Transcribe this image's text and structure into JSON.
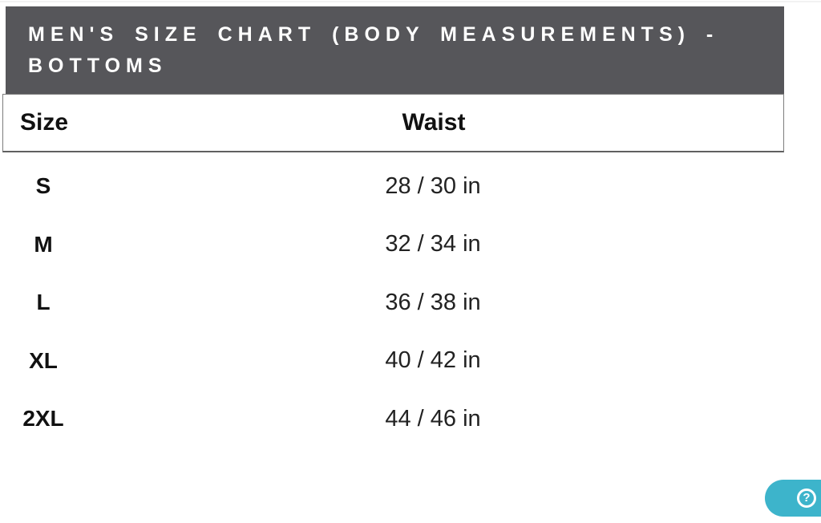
{
  "banner": {
    "title": "MEN'S SIZE CHART (BODY MEASUREMENTS) - BOTTOMS",
    "lines": [
      "MEN'S SIZE CHART (BODY MEASUREMENTS) -",
      "BOTTOMS"
    ],
    "background_color": "#56565a",
    "text_color": "#ffffff"
  },
  "table": {
    "columns": [
      "Size",
      "Waist"
    ],
    "rows": [
      {
        "size": "S",
        "waist": "28 / 30 in"
      },
      {
        "size": "M",
        "waist": "32 / 34 in"
      },
      {
        "size": "L",
        "waist": "36 / 38 in"
      },
      {
        "size": "XL",
        "waist": "40 / 42 in"
      },
      {
        "size": "2XL",
        "waist": "44 / 46 in"
      }
    ],
    "border_color": "#7d7d7d"
  },
  "help_button": {
    "icon": "question-mark-icon",
    "glyph": "?",
    "color": "#3db4cb"
  },
  "chart_data": {
    "type": "table",
    "title": "MEN'S SIZE CHART (BODY MEASUREMENTS) - BOTTOMS",
    "columns": [
      "Size",
      "Waist"
    ],
    "rows": [
      [
        "S",
        "28 / 30 in"
      ],
      [
        "M",
        "32 / 34 in"
      ],
      [
        "L",
        "36 / 38 in"
      ],
      [
        "XL",
        "40 / 42 in"
      ],
      [
        "2XL",
        "44 / 46 in"
      ]
    ],
    "units": "inches",
    "layout": "two-column size table, size column left, waist values centered"
  }
}
